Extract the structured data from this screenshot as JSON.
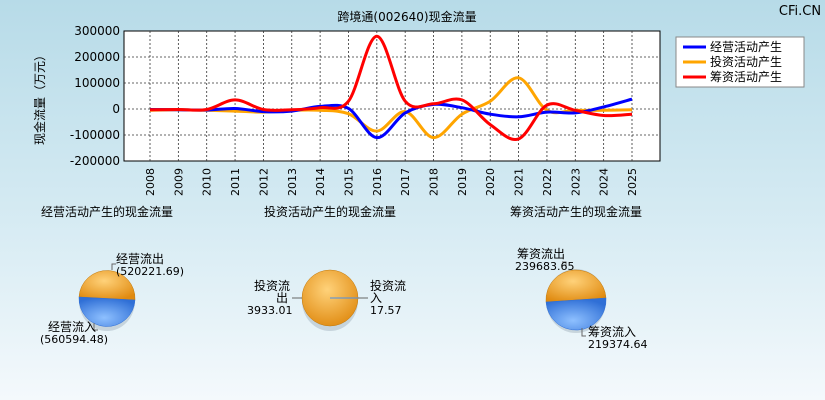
{
  "watermark": "CFi.CN",
  "chart_data": [
    {
      "type": "line",
      "title": "跨境通(002640)现金流量",
      "ylabel": "现金流量（万元）",
      "x": [
        "2008",
        "2009",
        "2010",
        "2011",
        "2012",
        "2013",
        "2014",
        "2015",
        "2016",
        "2017",
        "2018",
        "2019",
        "2020",
        "2021",
        "2022",
        "2023",
        "2024",
        "2025"
      ],
      "yticks": [
        "300000",
        "200000",
        "100000",
        "0",
        "-100000",
        "-200000"
      ],
      "ylim": [
        -200000,
        300000
      ],
      "grid": true,
      "legend_position": "top-right",
      "series": [
        {
          "name": "经营活动产生",
          "color": "#0000ff",
          "values": [
            -2000,
            -3000,
            -4000,
            2000,
            -10000,
            -8000,
            10000,
            2000,
            -110000,
            -15000,
            18000,
            5000,
            -20000,
            -30000,
            -12000,
            -15000,
            8000,
            38000
          ]
        },
        {
          "name": "投资活动产生",
          "color": "#ffa500",
          "values": [
            -5000,
            -3000,
            -5000,
            -8000,
            -12000,
            -5000,
            -5000,
            -18000,
            -85000,
            -10000,
            -110000,
            -20000,
            30000,
            120000,
            -5000,
            -5000,
            -5000,
            -3000
          ]
        },
        {
          "name": "筹资活动产生",
          "color": "#ff0000",
          "values": [
            -3000,
            -2000,
            -2000,
            35000,
            -2000,
            -3000,
            5000,
            30000,
            280000,
            30000,
            20000,
            35000,
            -60000,
            -115000,
            15000,
            -5000,
            -25000,
            -20000
          ]
        }
      ]
    },
    {
      "type": "pie",
      "title": "经营活动产生的现金流量",
      "slices": [
        {
          "label": "经营流出",
          "value_text": "(520221.69)",
          "value": 520221.69,
          "color": "#f5a623"
        },
        {
          "label": "经营流入",
          "value_text": "(560594.48)",
          "value": 560594.48,
          "color": "#4a8fe7"
        }
      ]
    },
    {
      "type": "pie",
      "title": "投资活动产生的现金流量",
      "slices": [
        {
          "label": "投资流出",
          "value_text": "3933.01",
          "value": 3933.01,
          "color": "#f5a623"
        },
        {
          "label": "投资流入",
          "value_text": "17.57",
          "value": 17.57,
          "color": "#4a8fe7"
        }
      ]
    },
    {
      "type": "pie",
      "title": "筹资活动产生的现金流量",
      "slices": [
        {
          "label": "筹资流出",
          "value_text": "239683.65",
          "value": 239683.65,
          "color": "#f5a623"
        },
        {
          "label": "筹资流入",
          "value_text": "219374.64",
          "value": 219374.64,
          "color": "#4a8fe7"
        }
      ]
    }
  ]
}
